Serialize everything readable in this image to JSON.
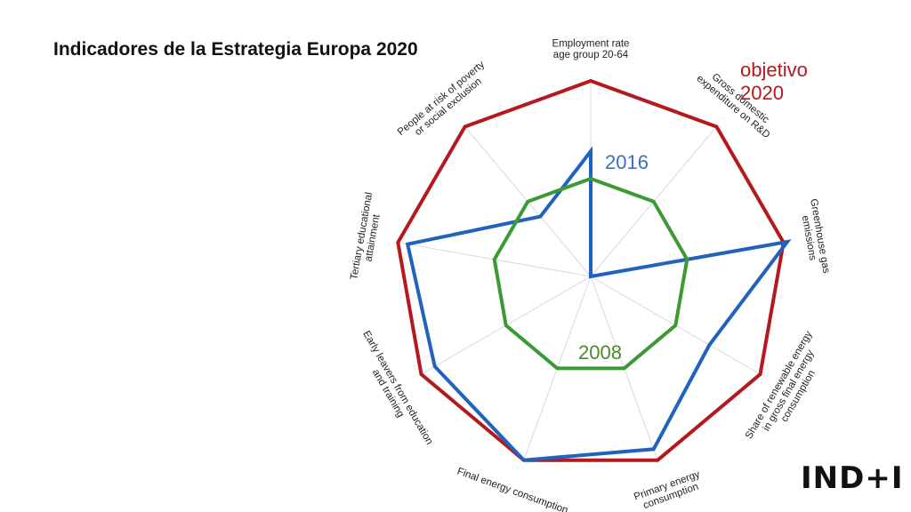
{
  "title": "Indicadores de la Estrategia Europa 2020",
  "logo": "IND+I",
  "chart_data": {
    "type": "radar",
    "axes": [
      [
        "Employment rate",
        "age group 20-64"
      ],
      [
        "Gross domestic",
        "expenditure on R&D"
      ],
      [
        "Greenhouse gas",
        "emissions"
      ],
      [
        "Share of renewable energy",
        "in gross final energy",
        "consumption"
      ],
      [
        "Primary energy",
        "consumption"
      ],
      [
        "Final energy consumption"
      ],
      [
        "Early leavers from education",
        "and training"
      ],
      [
        "Tertiary educational",
        "attainment"
      ],
      [
        "People at risk of poverty",
        "or social exclusion"
      ]
    ],
    "series": [
      {
        "name": "objetivo 2020",
        "color": "#b3191d",
        "values": [
          1,
          1,
          1,
          1,
          1,
          1,
          1,
          1,
          1
        ]
      },
      {
        "name": "2016",
        "color": "#1f63bd",
        "values": [
          0.64,
          0.0,
          1.02,
          0.7,
          0.94,
          1.0,
          0.92,
          0.95,
          0.4
        ]
      },
      {
        "name": "2008",
        "color": "#3c9a35",
        "values": [
          0.5,
          0.5,
          0.5,
          0.5,
          0.5,
          0.5,
          0.5,
          0.5,
          0.5
        ]
      }
    ],
    "legend_labels": [
      {
        "series": 0,
        "lines": [
          "objetivo",
          "2020"
        ],
        "color": "#b3191d"
      },
      {
        "series": 1,
        "lines": [
          "2016"
        ],
        "color": "#3a6fc4"
      },
      {
        "series": 2,
        "lines": [
          "2008"
        ],
        "color": "#4a8a2c"
      }
    ],
    "grid": true
  }
}
